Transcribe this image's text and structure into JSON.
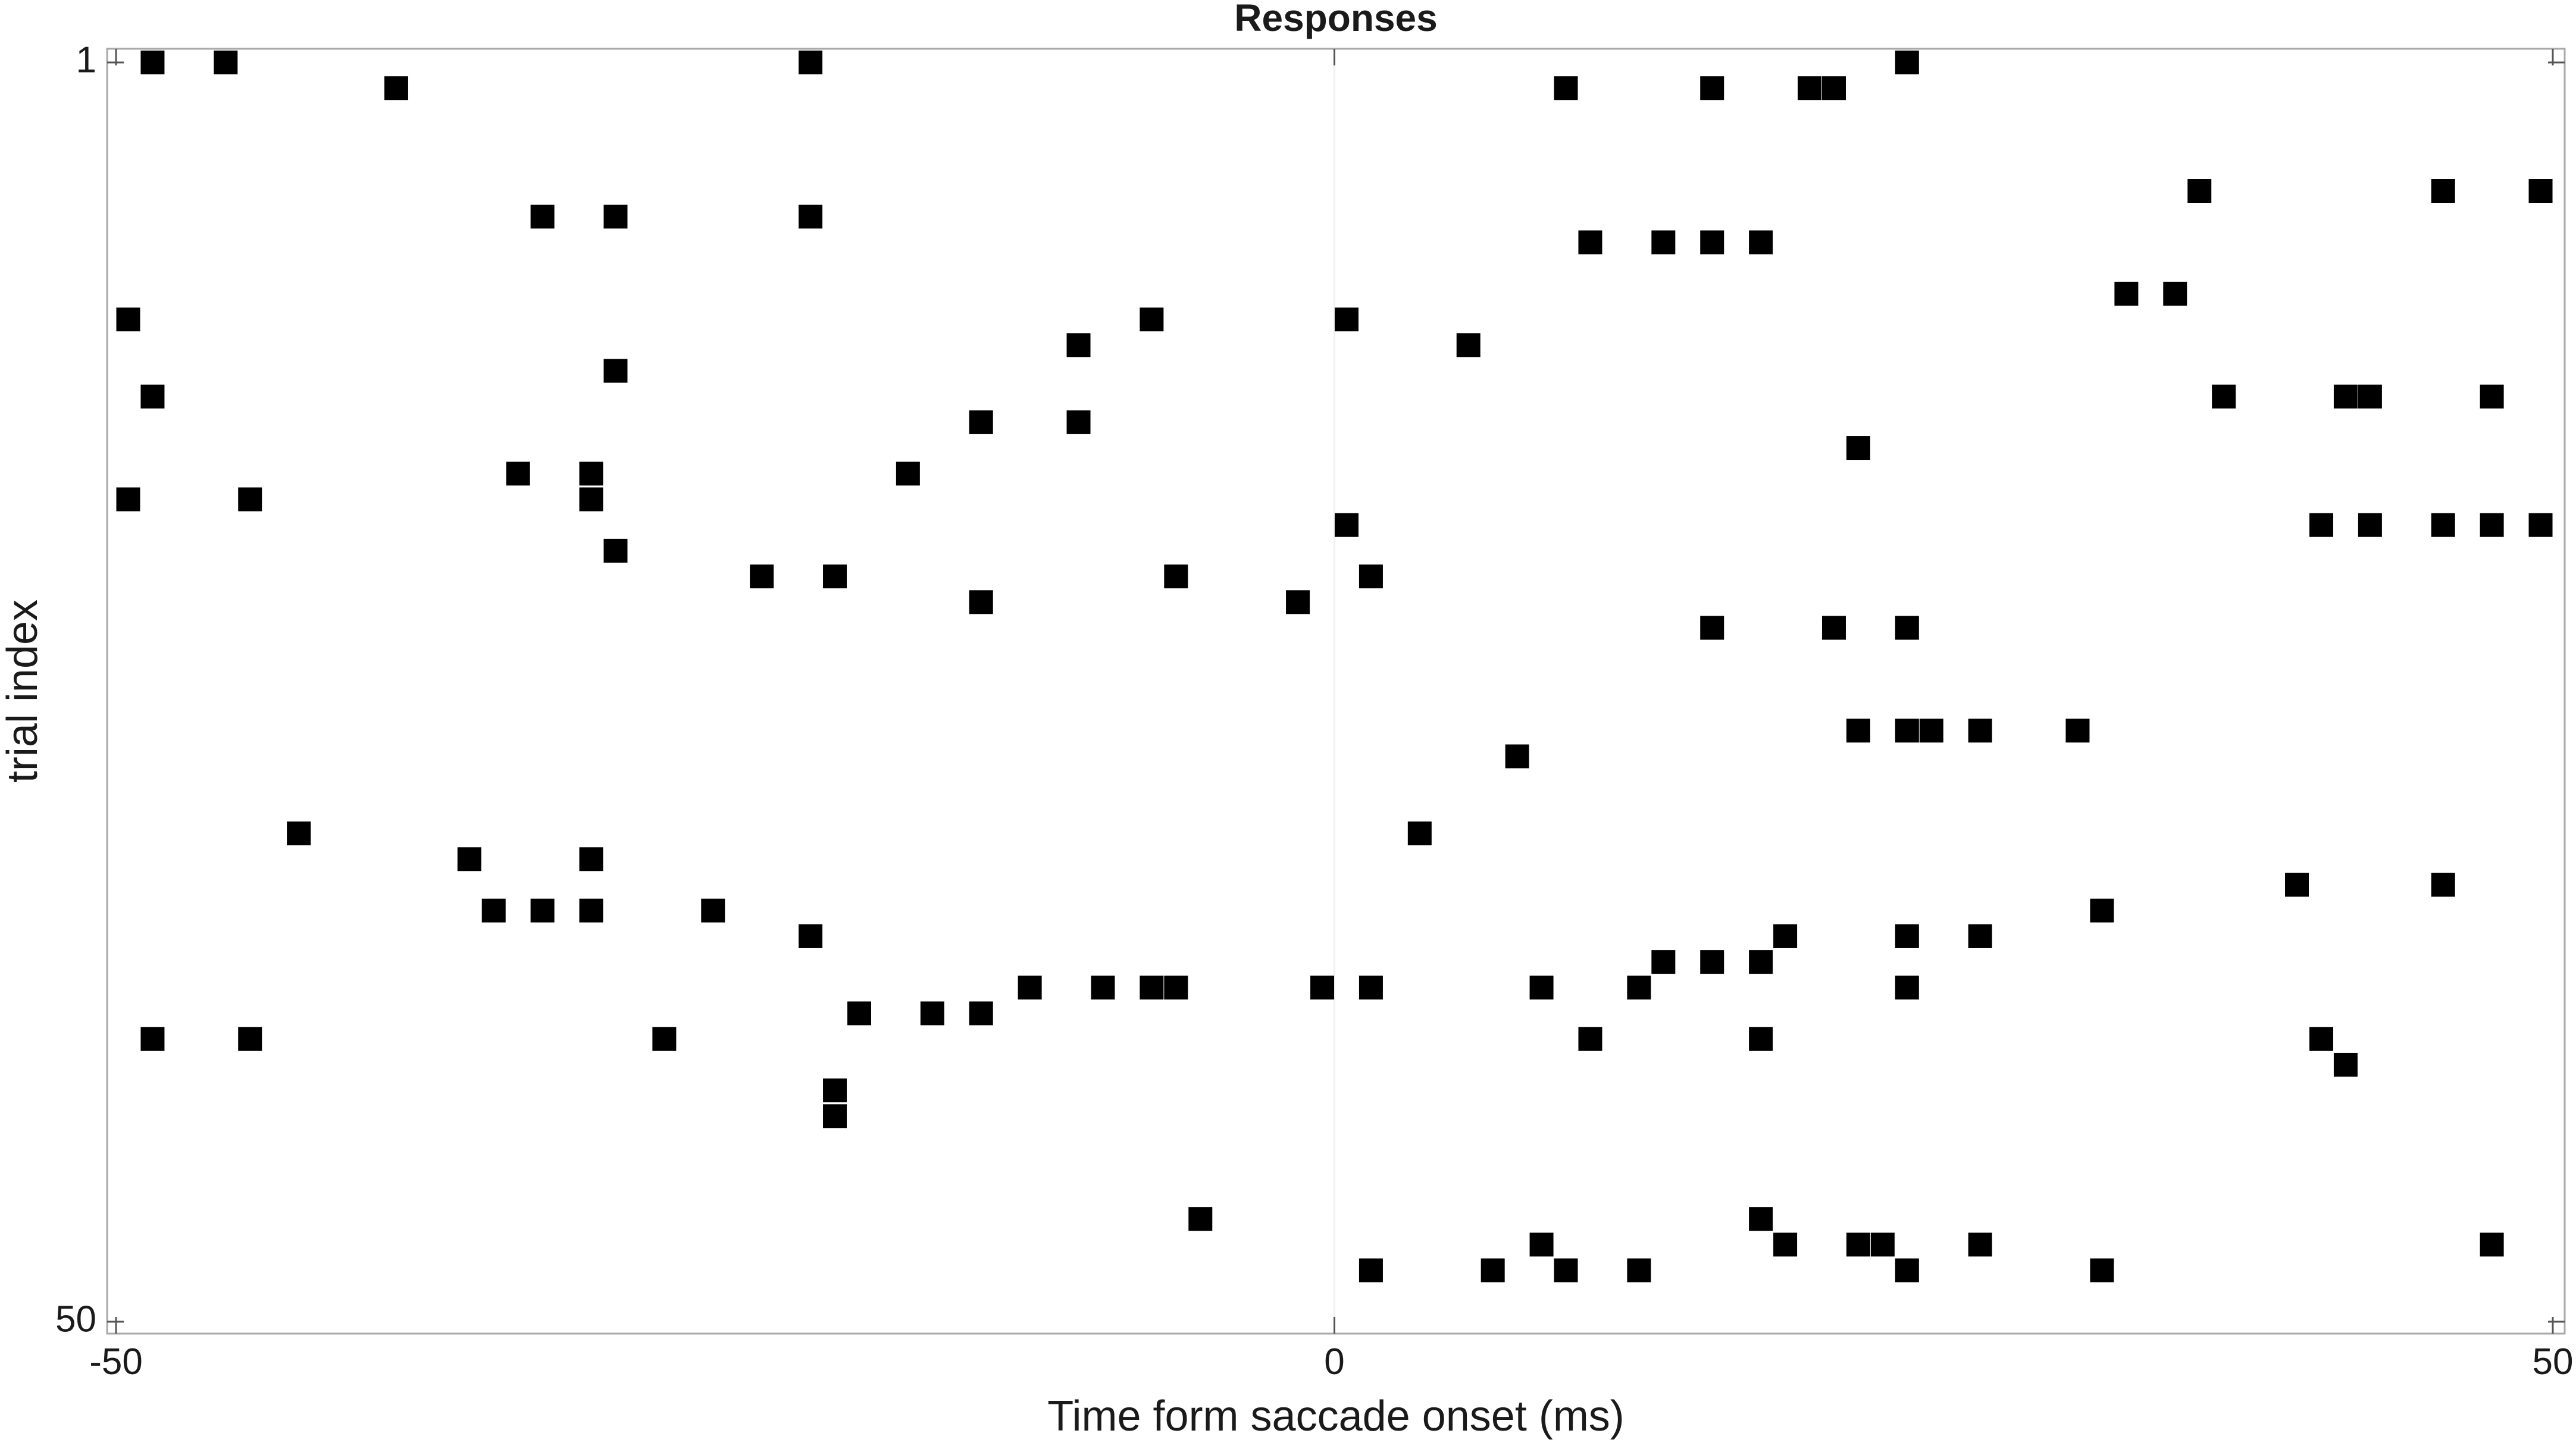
{
  "chart_data": {
    "type": "scatter",
    "title": "Responses",
    "xlabel": "Time form saccade onset (ms)",
    "ylabel": "trial index",
    "xlim": [
      -50,
      50
    ],
    "ylim": [
      1,
      50
    ],
    "y_reversed": true,
    "x_ticks": [
      "-50",
      "0",
      "50"
    ],
    "y_ticks": [
      "1",
      "50"
    ],
    "grid": false,
    "marker": "filled square",
    "marker_color": "#000000",
    "zero_line": true,
    "points": [
      {
        "x": -48.5,
        "y": 1
      },
      {
        "x": -45.5,
        "y": 1
      },
      {
        "x": -21.5,
        "y": 1
      },
      {
        "x": 23.5,
        "y": 1
      },
      {
        "x": -38.5,
        "y": 2
      },
      {
        "x": 9.5,
        "y": 2
      },
      {
        "x": 15.5,
        "y": 2
      },
      {
        "x": 19.5,
        "y": 2
      },
      {
        "x": 20.5,
        "y": 2
      },
      {
        "x": 35.5,
        "y": 6
      },
      {
        "x": 45.5,
        "y": 6
      },
      {
        "x": 49.5,
        "y": 6
      },
      {
        "x": -32.5,
        "y": 7
      },
      {
        "x": -29.5,
        "y": 7
      },
      {
        "x": -21.5,
        "y": 7
      },
      {
        "x": 10.5,
        "y": 8
      },
      {
        "x": 13.5,
        "y": 8
      },
      {
        "x": 15.5,
        "y": 8
      },
      {
        "x": 17.5,
        "y": 8
      },
      {
        "x": 32.5,
        "y": 10
      },
      {
        "x": 34.5,
        "y": 10
      },
      {
        "x": -49.5,
        "y": 11
      },
      {
        "x": -7.5,
        "y": 11
      },
      {
        "x": 0.5,
        "y": 11
      },
      {
        "x": -10.5,
        "y": 12
      },
      {
        "x": 5.5,
        "y": 12
      },
      {
        "x": -29.5,
        "y": 13
      },
      {
        "x": -48.5,
        "y": 14
      },
      {
        "x": 36.5,
        "y": 14
      },
      {
        "x": 41.5,
        "y": 14
      },
      {
        "x": 42.5,
        "y": 14
      },
      {
        "x": 47.5,
        "y": 14
      },
      {
        "x": -14.5,
        "y": 15
      },
      {
        "x": -10.5,
        "y": 15
      },
      {
        "x": 21.5,
        "y": 16
      },
      {
        "x": -33.5,
        "y": 17
      },
      {
        "x": -30.5,
        "y": 17
      },
      {
        "x": -17.5,
        "y": 17
      },
      {
        "x": -49.5,
        "y": 18
      },
      {
        "x": -44.5,
        "y": 18
      },
      {
        "x": -30.5,
        "y": 18
      },
      {
        "x": 0.5,
        "y": 19
      },
      {
        "x": 40.5,
        "y": 19
      },
      {
        "x": 42.5,
        "y": 19
      },
      {
        "x": 45.5,
        "y": 19
      },
      {
        "x": 47.5,
        "y": 19
      },
      {
        "x": 49.5,
        "y": 19
      },
      {
        "x": -29.5,
        "y": 20
      },
      {
        "x": -23.5,
        "y": 21
      },
      {
        "x": -20.5,
        "y": 21
      },
      {
        "x": -6.5,
        "y": 21
      },
      {
        "x": 1.5,
        "y": 21
      },
      {
        "x": -14.5,
        "y": 22
      },
      {
        "x": -1.5,
        "y": 22
      },
      {
        "x": 15.5,
        "y": 23
      },
      {
        "x": 20.5,
        "y": 23
      },
      {
        "x": 23.5,
        "y": 23
      },
      {
        "x": 21.5,
        "y": 27
      },
      {
        "x": 23.5,
        "y": 27
      },
      {
        "x": 24.5,
        "y": 27
      },
      {
        "x": 26.5,
        "y": 27
      },
      {
        "x": 30.5,
        "y": 27
      },
      {
        "x": 7.5,
        "y": 28
      },
      {
        "x": -42.5,
        "y": 31
      },
      {
        "x": 3.5,
        "y": 31
      },
      {
        "x": -35.5,
        "y": 32
      },
      {
        "x": -30.5,
        "y": 32
      },
      {
        "x": 39.5,
        "y": 33
      },
      {
        "x": 45.5,
        "y": 33
      },
      {
        "x": -34.5,
        "y": 34
      },
      {
        "x": -32.5,
        "y": 34
      },
      {
        "x": -30.5,
        "y": 34
      },
      {
        "x": -25.5,
        "y": 34
      },
      {
        "x": 31.5,
        "y": 34
      },
      {
        "x": -21.5,
        "y": 35
      },
      {
        "x": 18.5,
        "y": 35
      },
      {
        "x": 23.5,
        "y": 35
      },
      {
        "x": 26.5,
        "y": 35
      },
      {
        "x": 13.5,
        "y": 36
      },
      {
        "x": 15.5,
        "y": 36
      },
      {
        "x": 17.5,
        "y": 36
      },
      {
        "x": -12.5,
        "y": 37
      },
      {
        "x": -9.5,
        "y": 37
      },
      {
        "x": -7.5,
        "y": 37
      },
      {
        "x": -6.5,
        "y": 37
      },
      {
        "x": -0.5,
        "y": 37
      },
      {
        "x": 1.5,
        "y": 37
      },
      {
        "x": 8.5,
        "y": 37
      },
      {
        "x": 12.5,
        "y": 37
      },
      {
        "x": 23.5,
        "y": 37
      },
      {
        "x": -19.5,
        "y": 38
      },
      {
        "x": -16.5,
        "y": 38
      },
      {
        "x": -14.5,
        "y": 38
      },
      {
        "x": -48.5,
        "y": 39
      },
      {
        "x": -44.5,
        "y": 39
      },
      {
        "x": -27.5,
        "y": 39
      },
      {
        "x": 10.5,
        "y": 39
      },
      {
        "x": 17.5,
        "y": 39
      },
      {
        "x": 40.5,
        "y": 39
      },
      {
        "x": 41.5,
        "y": 40
      },
      {
        "x": -20.5,
        "y": 41
      },
      {
        "x": -20.5,
        "y": 42
      },
      {
        "x": -5.5,
        "y": 46
      },
      {
        "x": 17.5,
        "y": 46
      },
      {
        "x": 8.5,
        "y": 47
      },
      {
        "x": 18.5,
        "y": 47
      },
      {
        "x": 21.5,
        "y": 47
      },
      {
        "x": 22.5,
        "y": 47
      },
      {
        "x": 26.5,
        "y": 47
      },
      {
        "x": 47.5,
        "y": 47
      },
      {
        "x": 1.5,
        "y": 48
      },
      {
        "x": 6.5,
        "y": 48
      },
      {
        "x": 9.5,
        "y": 48
      },
      {
        "x": 12.5,
        "y": 48
      },
      {
        "x": 23.5,
        "y": 48
      },
      {
        "x": 31.5,
        "y": 48
      }
    ]
  }
}
